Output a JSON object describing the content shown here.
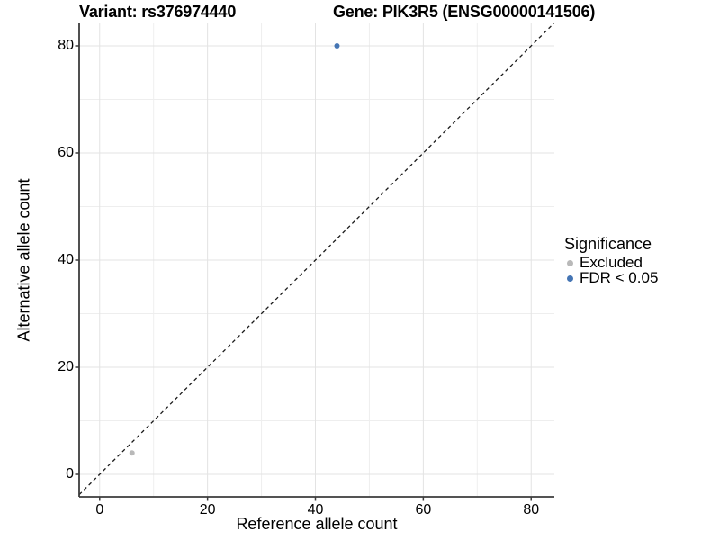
{
  "header": {
    "variant_title": "Variant: rs376974440",
    "gene_title": "Gene: PIK3R5 (ENSG00000141506)"
  },
  "chart_data": {
    "type": "scatter",
    "title": "Variant: rs376974440  /  Gene: PIK3R5 (ENSG00000141506)",
    "xlabel": "Reference allele count",
    "ylabel": "Alternative allele count",
    "xlim": [
      -3.8,
      84.3
    ],
    "ylim": [
      -4.2,
      84.2
    ],
    "x_major_ticks": [
      0,
      20,
      40,
      60,
      80
    ],
    "y_major_ticks": [
      0,
      20,
      40,
      60,
      80
    ],
    "x_minor_ticks": [
      10,
      30,
      50,
      70
    ],
    "y_minor_ticks": [
      10,
      30,
      50,
      70
    ],
    "grid": true,
    "identity_line": {
      "slope": 1,
      "intercept": 0,
      "style": "dashed",
      "color": "#1a1a1a"
    },
    "series": [
      {
        "name": "Excluded",
        "color": "#b9b9b9",
        "points": [
          {
            "x": 6,
            "y": 4
          }
        ]
      },
      {
        "name": "FDR < 0.05",
        "color": "#4575b4",
        "points": [
          {
            "x": 44,
            "y": 80
          }
        ]
      }
    ],
    "legend": {
      "title": "Significance",
      "position": "right",
      "items": [
        {
          "label": "Excluded",
          "color": "#b9b9b9"
        },
        {
          "label": "FDR < 0.05",
          "color": "#4575b4"
        }
      ]
    },
    "colors": {
      "grid_major": "#e3e3e3",
      "grid_minor": "#eeeeee",
      "axis_line": "#3c3c3c",
      "text": "#000000",
      "background": "#ffffff"
    }
  }
}
